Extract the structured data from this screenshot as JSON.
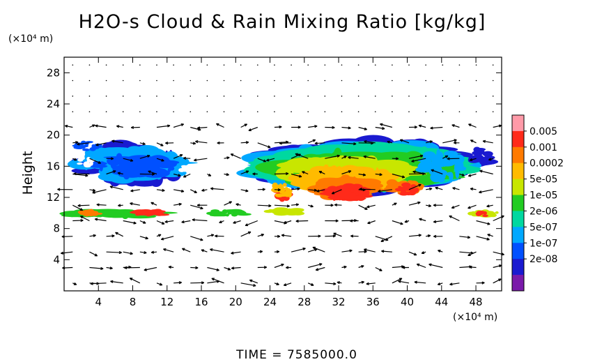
{
  "chart_data": {
    "type": "heatmap",
    "title": "H2O-s Cloud & Rain Mixing Ratio [kg/kg]",
    "ylabel": "Height",
    "yunit": "(×10⁴ m)",
    "xunit": "(×10⁴ m)",
    "xlim": [
      0,
      51
    ],
    "ylim": [
      0,
      30
    ],
    "xticks": [
      "4",
      "8",
      "12",
      "16",
      "20",
      "24",
      "28",
      "32",
      "36",
      "40",
      "44",
      "48"
    ],
    "xtick_values": [
      4,
      8,
      12,
      16,
      20,
      24,
      28,
      32,
      36,
      40,
      44,
      48
    ],
    "yticks": [
      "4",
      "8",
      "12",
      "16",
      "20",
      "24",
      "28"
    ],
    "ytick_values": [
      4,
      8,
      12,
      16,
      20,
      24,
      28
    ],
    "colorbar": {
      "labels": [
        "0.005",
        "0.001",
        "0.0002",
        "5e-05",
        "1e-05",
        "2e-06",
        "5e-07",
        "1e-07",
        "2e-08"
      ],
      "colors": [
        "#ff9aa8",
        "#ff2a1a",
        "#ff7a00",
        "#ffbb00",
        "#c8e600",
        "#22cc22",
        "#00d8a0",
        "#00a8ff",
        "#0050ff",
        "#1a1ad0",
        "#7a1aaa"
      ]
    },
    "overlay": "wind vectors (arrows)"
  },
  "footer": {
    "time_label": "TIME  =  7585000.0"
  }
}
